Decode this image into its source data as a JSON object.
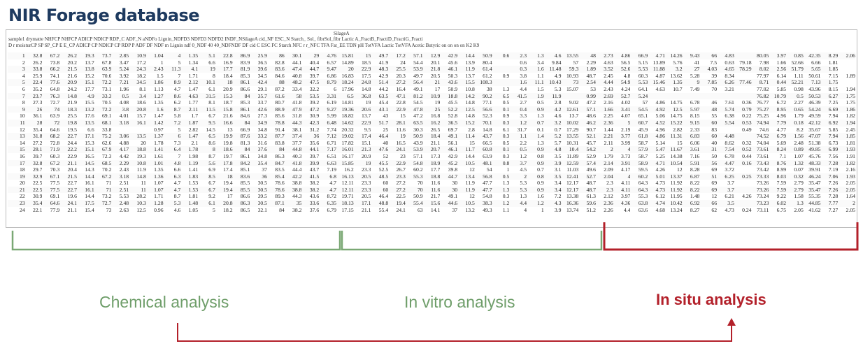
{
  "title": "NIR Forage database",
  "spreadsheet": {
    "header_line1": "SilageA",
    "header_line2": "sample1 drymatte          NHFCP NHFCP          ADICP          NDICP          RDP_C          ADF_N          aNDFo          Lignin_NDFD3 NDFD3 NDFD2          INDF_NSilageA cid_NF          ESC_N          Starch_ Sol_ fibrSol_fibr          Lactic          A_FractB_FractiD_FractiG_Fracti",
    "header_line3": "D   r   moisturCP   SP   SP_CP E   E_CP   ADICP CP   NDICP CP   RDP   P   ADF   DF   NDF   m   Lignin   ndf   0_NDF 40   40_NDFNDF   DF   cid   C   ESC   FC   Starch   NFC   r   r_NFC   TFA   Fat_EE   TDN   pH   TotVFA Lactic   TotVFA Acetic   Butyric on   on   on   on   K2   K9",
    "rows": [
      [
        "1",
        "32.8",
        "67.2",
        "26.2",
        "19.3",
        "73.7",
        "2.85",
        "10.9",
        "1.04",
        "4",
        "1.35",
        "5.1",
        "22.8",
        "86.9",
        "25.9",
        "86",
        "30.1",
        "29",
        "4.76",
        "15.81",
        "15",
        "49.7",
        "17.2",
        "57.1",
        "12.9",
        "42.9",
        "14.4",
        "50.9",
        "0.6",
        "2.3",
        "1.3",
        "4.6",
        "13.55",
        "48",
        "2.73",
        "4.86",
        "66.9",
        "4.71",
        "14.26",
        "9.43",
        "66",
        "4.83",
        "",
        "80.05",
        "3.97",
        "0.85",
        "42.35",
        "8.29",
        "2.06"
      ],
      [
        "2",
        "26.2",
        "73.8",
        "20.2",
        "13.7",
        "67.8",
        "3.47",
        "17.2",
        "1",
        "5",
        "1.34",
        "6.6",
        "16.9",
        "83.9",
        "36.5",
        "82.8",
        "44.1",
        "40.4",
        "6.57",
        "14.89",
        "18.5",
        "41.9",
        "24",
        "54.4",
        "20.1",
        "45.6",
        "13.9",
        "80.4",
        "",
        "0.6",
        "3.4",
        "9.84",
        "57",
        "2.29",
        "4.63",
        "56.5",
        "5.15",
        "13.89",
        "5.76",
        "41",
        "7.5",
        "0.63",
        "79.18",
        "7.98",
        "1.66",
        "52.66",
        "6.66",
        "1.81"
      ],
      [
        "3",
        "33.8",
        "66.2",
        "21.5",
        "13.8",
        "63.9",
        "5.24",
        "24.3",
        "2.43",
        "11.3",
        "4.1",
        "19",
        "17.7",
        "81.9",
        "39.6",
        "83.6",
        "47.4",
        "44.7",
        "9.47",
        "20",
        "22.9",
        "48.3",
        "25.5",
        "53.9",
        "21.8",
        "46.1",
        "11.9",
        "61.4",
        "",
        "0.3",
        "1.6",
        "11.48",
        "59.3",
        "1.89",
        "3.52",
        "52.6",
        "5.53",
        "11.88",
        "3.2",
        "27",
        "4.03",
        "4.65",
        "78.29",
        "8.02",
        "2.56",
        "51.79",
        "5.65",
        "1.85"
      ],
      [
        "4",
        "25.9",
        "74.1",
        "21.6",
        "15.2",
        "70.6",
        "3.92",
        "18.2",
        "1.5",
        "7",
        "1.71",
        "8",
        "18.4",
        "85.3",
        "34.5",
        "84.6",
        "40.8",
        "39.7",
        "6.86",
        "16.83",
        "17.5",
        "42.9",
        "20.3",
        "49.7",
        "20.5",
        "50.3",
        "13.7",
        "61.2",
        "0.9",
        "3.8",
        "1.1",
        "4.9",
        "10.93",
        "48.7",
        "2.45",
        "4.8",
        "60.3",
        "4.87",
        "13.62",
        "5.28",
        "39",
        "8.34",
        "",
        "77.97",
        "6.14",
        "1.11",
        "50.61",
        "7.15",
        "1.89"
      ],
      [
        "5",
        "22.4",
        "77.6",
        "20.9",
        "15.1",
        "72.2",
        "7.21",
        "34.5",
        "1.86",
        "8.9",
        "2.12",
        "10.1",
        "18",
        "86.1",
        "42.4",
        "88",
        "48.2",
        "47.5",
        "8.79",
        "18.24",
        "24.8",
        "51.4",
        "27.2",
        "56.4",
        "21",
        "43.6",
        "15.5",
        "108.3",
        "",
        "1.6",
        "11.1",
        "10.43",
        "73",
        "2.54",
        "4.44",
        "54.9",
        "5.53",
        "15.46",
        "1.35",
        "9",
        "7.85",
        "6.26",
        "77.46",
        "8.71",
        "0.44",
        "52.21",
        "7.13",
        "1.75"
      ],
      [
        "6",
        "35.2",
        "64.8",
        "24.2",
        "17.7",
        "73.1",
        "1.96",
        "8.1",
        "1.13",
        "4.7",
        "1.47",
        "6.1",
        "20.9",
        "86.6",
        "29.1",
        "87.2",
        "33.4",
        "32.2",
        "6",
        "17.96",
        "14.8",
        "44.2",
        "16.4",
        "49.1",
        "17",
        "50.9",
        "10.8",
        "38",
        "1.3",
        "4.4",
        "1.5",
        "5.3",
        "15.07",
        "53",
        "2.43",
        "4.24",
        "64.1",
        "4.63",
        "10.7",
        "7.49",
        "70",
        "3.21",
        "",
        "77.02",
        "5.85",
        "0.98",
        "43.96",
        "8.15",
        "1.94"
      ],
      [
        "7",
        "23.7",
        "76.3",
        "14.8",
        "4.9",
        "33.3",
        "0.5",
        "3.4",
        "1.27",
        "8.6",
        "4.63",
        "31.5",
        "15.3",
        "84",
        "35.7",
        "61.6",
        "58",
        "53.5",
        "3.31",
        "6.5",
        "36.8",
        "63.5",
        "47.1",
        "81.2",
        "10.9",
        "18.8",
        "14.2",
        "90.2",
        "6.5",
        "41.5",
        "1.9",
        "11.9",
        "",
        "0.99",
        "2.69",
        "52.7",
        "5.24",
        "",
        "",
        "",
        "",
        "",
        "",
        "76.82",
        "10.79",
        "0.5",
        "50.53",
        "6.27",
        "1.75"
      ],
      [
        "8",
        "27.3",
        "72.7",
        "21.9",
        "15.5",
        "70.5",
        "4.08",
        "18.6",
        "1.35",
        "6.2",
        "1.77",
        "8.1",
        "18.7",
        "85.3",
        "33.7",
        "80.7",
        "41.8",
        "39.2",
        "6.19",
        "14.81",
        "19",
        "45.4",
        "22.8",
        "54.5",
        "19",
        "45.5",
        "14.8",
        "77.1",
        "0.5",
        "2.7",
        "0.5",
        "2.8",
        "9.02",
        "47.2",
        "2.16",
        "4.02",
        "57",
        "4.86",
        "14.75",
        "6.78",
        "46",
        "7.61",
        "0.36",
        "76.77",
        "6.72",
        "2.27",
        "46.39",
        "7.25",
        "1.75"
      ],
      [
        "9",
        "26",
        "74",
        "18.3",
        "13.2",
        "72.2",
        "3.8",
        "20.8",
        "1.6",
        "8.7",
        "2.11",
        "11.5",
        "15.8",
        "86.1",
        "42.6",
        "88.9",
        "47.9",
        "47.2",
        "9.27",
        "19.36",
        "20.6",
        "43.1",
        "22.9",
        "47.8",
        "25",
        "52.2",
        "12.5",
        "56.6",
        "0.1",
        "0.4",
        "0.9",
        "4.2",
        "12.61",
        "57.1",
        "1.66",
        "3.41",
        "54.5",
        "4.92",
        "12.5",
        "5.97",
        "48",
        "5.74",
        "0.79",
        "75.27",
        "8.95",
        "0.65",
        "54.24",
        "6.69",
        "1.86"
      ],
      [
        "10",
        "36.1",
        "63.9",
        "25.5",
        "17.6",
        "69.1",
        "4.01",
        "15.7",
        "1.47",
        "5.8",
        "1.7",
        "6.7",
        "21.6",
        "84.6",
        "27.3",
        "85.6",
        "31.8",
        "30.9",
        "5.99",
        "18.82",
        "13.7",
        "43",
        "15",
        "47.2",
        "16.8",
        "52.8",
        "14.8",
        "52.3",
        "0.9",
        "3.3",
        "1.3",
        "4.6",
        "13.7",
        "48.6",
        "2.25",
        "4.07",
        "65.1",
        "5.06",
        "14.75",
        "8.15",
        "55",
        "6.38",
        "0.22",
        "75.25",
        "4.96",
        "1.79",
        "49.59",
        "7.94",
        "1.82"
      ],
      [
        "11",
        "28",
        "72",
        "19.8",
        "13.5",
        "68.1",
        "3.18",
        "16.1",
        "1.42",
        "7.2",
        "1.87",
        "9.5",
        "16.6",
        "84",
        "34.9",
        "78.8",
        "44.3",
        "42.3",
        "6.48",
        "14.62",
        "22.9",
        "51.7",
        "28.1",
        "63.5",
        "16.2",
        "36.5",
        "15.2",
        "70.1",
        "0.3",
        "1.2",
        "0.7",
        "3.2",
        "10.02",
        "46.2",
        "2.36",
        "5",
        "60.7",
        "4.52",
        "15.22",
        "9.15",
        "60",
        "5.54",
        "0.53",
        "74.94",
        "7.79",
        "0.18",
        "42.12",
        "6.92",
        "1.94"
      ],
      [
        "12",
        "35.4",
        "64.6",
        "19.5",
        "6.6",
        "33.8",
        "",
        "",
        "0.97",
        "5",
        "2.82",
        "14.5",
        "13",
        "66.9",
        "34.8",
        "91.4",
        "38.1",
        "31.2",
        "7.74",
        "20.32",
        "9.5",
        "25",
        "11.6",
        "30.3",
        "26.5",
        "69.7",
        "2.8",
        "14.8",
        "6.1",
        "31.7",
        "0.1",
        "0.7",
        "17.29",
        "90.7",
        "1.44",
        "2.19",
        "45.9",
        "4.96",
        "2.82",
        "2.33",
        "83",
        "",
        "0.49",
        "74.6",
        "4.77",
        "8.2",
        "35.67",
        "5.85",
        "2.45"
      ],
      [
        "13",
        "31.8",
        "68.2",
        "22.7",
        "17.1",
        "75.2",
        "3.06",
        "13.5",
        "1.37",
        "6",
        "1.47",
        "6.5",
        "19.9",
        "87.6",
        "33.2",
        "87.7",
        "37.4",
        "36",
        "7.12",
        "19.02",
        "17.4",
        "46.4",
        "19",
        "50.9",
        "18.4",
        "49.1",
        "11.4",
        "43.7",
        "0.3",
        "1.1",
        "1.4",
        "5.2",
        "13.55",
        "52.1",
        "2.21",
        "3.77",
        "61.8",
        "4.86",
        "11.31",
        "6.83",
        "60",
        "4.48",
        "",
        "74.52",
        "6.79",
        "1.56",
        "47.07",
        "7.94",
        "1.85"
      ],
      [
        "14",
        "27.2",
        "72.8",
        "24.4",
        "15.3",
        "62.6",
        "4.88",
        "20",
        "1.78",
        "7.3",
        "2.1",
        "8.6",
        "19.8",
        "81.3",
        "31.6",
        "83.8",
        "37.7",
        "35.6",
        "6.71",
        "17.82",
        "15.1",
        "40",
        "16.5",
        "43.9",
        "21.1",
        "56.1",
        "15",
        "66.5",
        "0.5",
        "2.2",
        "1.3",
        "5.7",
        "10.31",
        "45.7",
        "2.11",
        "3.99",
        "58.7",
        "5.14",
        "15",
        "6.06",
        "40",
        "8.62",
        "0.32",
        "74.04",
        "5.69",
        "2.48",
        "51.38",
        "6.73",
        "1.81"
      ],
      [
        "15",
        "28.1",
        "71.9",
        "22.2",
        "15.1",
        "67.9",
        "4.17",
        "18.8",
        "1.41",
        "6.4",
        "1.78",
        "8",
        "18.6",
        "84",
        "37.6",
        "84",
        "44.8",
        "44.1",
        "7.17",
        "16.01",
        "21.3",
        "47.6",
        "24.1",
        "53.9",
        "20.7",
        "46.1",
        "11.7",
        "60.8",
        "0.1",
        "0.5",
        "0.9",
        "4.8",
        "10.4",
        "54.2",
        "2",
        "4",
        "57.9",
        "5.47",
        "11.67",
        "3.61",
        "31",
        "7.54",
        "0.52",
        "73.61",
        "8.24",
        "0.89",
        "49.85",
        "6.99",
        "1.93"
      ],
      [
        "16",
        "39.7",
        "60.3",
        "22.9",
        "16.5",
        "72.3",
        "4.42",
        "19.3",
        "1.61",
        "7",
        "1.98",
        "8.7",
        "19.7",
        "86.1",
        "34.8",
        "86.3",
        "40.3",
        "39.7",
        "6.51",
        "16.17",
        "20.9",
        "52",
        "23",
        "57.1",
        "17.3",
        "42.9",
        "14.4",
        "63.9",
        "0.3",
        "1.2",
        "0.8",
        "3.5",
        "11.89",
        "52.9",
        "1.79",
        "3.73",
        "58.7",
        "5.25",
        "14.38",
        "7.16",
        "50",
        "6.78",
        "0.44",
        "73.61",
        "7.1",
        "1.07",
        "45.76",
        "7.56",
        "1.91"
      ],
      [
        "17",
        "32.8",
        "67.2",
        "21.1",
        "14.5",
        "68.5",
        "2.29",
        "10.8",
        "1.01",
        "4.8",
        "1.19",
        "5.6",
        "17.8",
        "84.2",
        "35.4",
        "84.7",
        "41.8",
        "39.9",
        "6.63",
        "15.85",
        "19",
        "45.5",
        "22.9",
        "54.8",
        "18.9",
        "45.2",
        "10.5",
        "48.1",
        "0.8",
        "3.7",
        "0.9",
        "3.9",
        "12.59",
        "57.4",
        "2.14",
        "3.91",
        "58.9",
        "4.71",
        "10.54",
        "5.91",
        "56",
        "4.47",
        "0.16",
        "73.43",
        "8.76",
        "1.32",
        "48.33",
        "7.28",
        "1.82"
      ],
      [
        "18",
        "29.7",
        "70.3",
        "20.4",
        "14.3",
        "70.2",
        "2.43",
        "11.9",
        "1.35",
        "6.6",
        "1.41",
        "6.9",
        "17.4",
        "85.1",
        "37",
        "83.5",
        "44.4",
        "43.7",
        "7.19",
        "16.2",
        "23.3",
        "52.5",
        "26.7",
        "60.2",
        "17.7",
        "39.8",
        "12",
        "54",
        "1",
        "4.5",
        "0.7",
        "3.1",
        "11.03",
        "49.6",
        "2.09",
        "4.17",
        "59.5",
        "4.26",
        "12",
        "8.28",
        "69",
        "3.72",
        "",
        "73.42",
        "8.99",
        "0.07",
        "39.91",
        "7.19",
        "2.16"
      ],
      [
        "19",
        "32.9",
        "67.1",
        "21.5",
        "14.4",
        "67.2",
        "3.18",
        "14.8",
        "1.36",
        "6.3",
        "1.83",
        "8.5",
        "18",
        "83.6",
        "36",
        "85.4",
        "42.2",
        "41.5",
        "6.8",
        "16.13",
        "20.5",
        "48.5",
        "23.3",
        "55.3",
        "18.8",
        "44.7",
        "13.4",
        "56.8",
        "0.5",
        "2",
        "0.8",
        "3.5",
        "12.41",
        "52.7",
        "2.04",
        "4",
        "60.2",
        "5.01",
        "13.37",
        "6.87",
        "51",
        "6.25",
        "0.25",
        "73.33",
        "8.03",
        "0.32",
        "46.24",
        "7.06",
        "1.93"
      ],
      [
        "20",
        "22.5",
        "77.5",
        "22.7",
        "16.1",
        "71",
        "2.51",
        "11",
        "1.07",
        "4.7",
        "1.53",
        "6.7",
        "19.4",
        "85.5",
        "30.5",
        "78.6",
        "38.8",
        "38.2",
        "4.7",
        "12.11",
        "23.3",
        "60",
        "27.2",
        "70",
        "11.6",
        "30",
        "11.9",
        "47.7",
        "1.3",
        "5.3",
        "0.9",
        "3.4",
        "12.17",
        "48.7",
        "2.3",
        "4.11",
        "64.3",
        "4.73",
        "11.92",
        "8.22",
        "69",
        "3.7",
        "",
        "73.26",
        "7.59",
        "2.79",
        "35.47",
        "7.26",
        "2.05"
      ],
      [
        "21",
        "22.5",
        "77.5",
        "22.7",
        "16.1",
        "71",
        "2.51",
        "11",
        "1.07",
        "4.7",
        "1.53",
        "6.7",
        "19.4",
        "85.5",
        "30.5",
        "78.6",
        "38.8",
        "38.2",
        "4.7",
        "12.11",
        "23.3",
        "60",
        "27.2",
        "70",
        "11.6",
        "30",
        "11.9",
        "47.7",
        "1.3",
        "5.3",
        "0.9",
        "3.4",
        "12.17",
        "48.7",
        "2.3",
        "4.11",
        "64.3",
        "4.73",
        "11.92",
        "8.22",
        "69",
        "3.7",
        "",
        "73.26",
        "7.59",
        "2.79",
        "35.47",
        "7.26",
        "2.05"
      ],
      [
        "22",
        "30.9",
        "69.1",
        "19.6",
        "14.4",
        "73.2",
        "5.53",
        "28.2",
        "1.71",
        "8.7",
        "1.81",
        "9.2",
        "17",
        "86.6",
        "39.5",
        "89.3",
        "44.3",
        "43.6",
        "8.72",
        "19.71",
        "20.5",
        "46.4",
        "22.5",
        "50.9",
        "21.7",
        "49.1",
        "12",
        "54.8",
        "0.3",
        "1.3",
        "1.6",
        "7.2",
        "13.38",
        "61.3",
        "2.12",
        "3.97",
        "55.3",
        "6.12",
        "11.95",
        "1.48",
        "12",
        "6.21",
        "4.26",
        "73.24",
        "9.22",
        "1.58",
        "55.35",
        "7.28",
        "1.64"
      ],
      [
        "23",
        "35.4",
        "64.6",
        "24.1",
        "17.5",
        "72.7",
        "2.48",
        "10.3",
        "1.28",
        "5.3",
        "1.48",
        "6.1",
        "20.8",
        "86.3",
        "30.5",
        "87.1",
        "35",
        "33.6",
        "6.35",
        "18.13",
        "17.1",
        "48.8",
        "19.4",
        "55.4",
        "15.6",
        "44.6",
        "10.5",
        "38.3",
        "1.2",
        "4.4",
        "1.2",
        "4.3",
        "16.36",
        "59.6",
        "2.36",
        "4.36",
        "63.8",
        "4.74",
        "10.42",
        "6.92",
        "66",
        "3.5",
        "",
        "73.23",
        "6.02",
        "1.3",
        "44.85",
        "7.77",
        "2"
      ],
      [
        "24",
        "22.1",
        "77.9",
        "21.1",
        "15.4",
        "73",
        "2.63",
        "12.5",
        "0.96",
        "4.6",
        "1.05",
        "5",
        "18.2",
        "86.5",
        "32.1",
        "84",
        "38.2",
        "37.6",
        "6.79",
        "17.15",
        "21.1",
        "55.4",
        "24.1",
        "63",
        "14.1",
        "37",
        "13.2",
        "49.3",
        "1.1",
        "4",
        "1",
        "3.9",
        "13.74",
        "51.2",
        "2.26",
        "4.4",
        "63.6",
        "4.68",
        "13.24",
        "8.27",
        "62",
        "4.73",
        "0.24",
        "73.11",
        "6.75",
        "2.05",
        "41.62",
        "7.27",
        "2.05"
      ]
    ]
  },
  "groups": {
    "chemical": {
      "label": "Chemical analysis",
      "color": "#6f9e6a"
    },
    "in_vitro": {
      "label": "In vitro analysis",
      "color": "#6f9e6a"
    },
    "in_situ": {
      "label": "In situ analysis",
      "color": "#b3202a"
    }
  }
}
